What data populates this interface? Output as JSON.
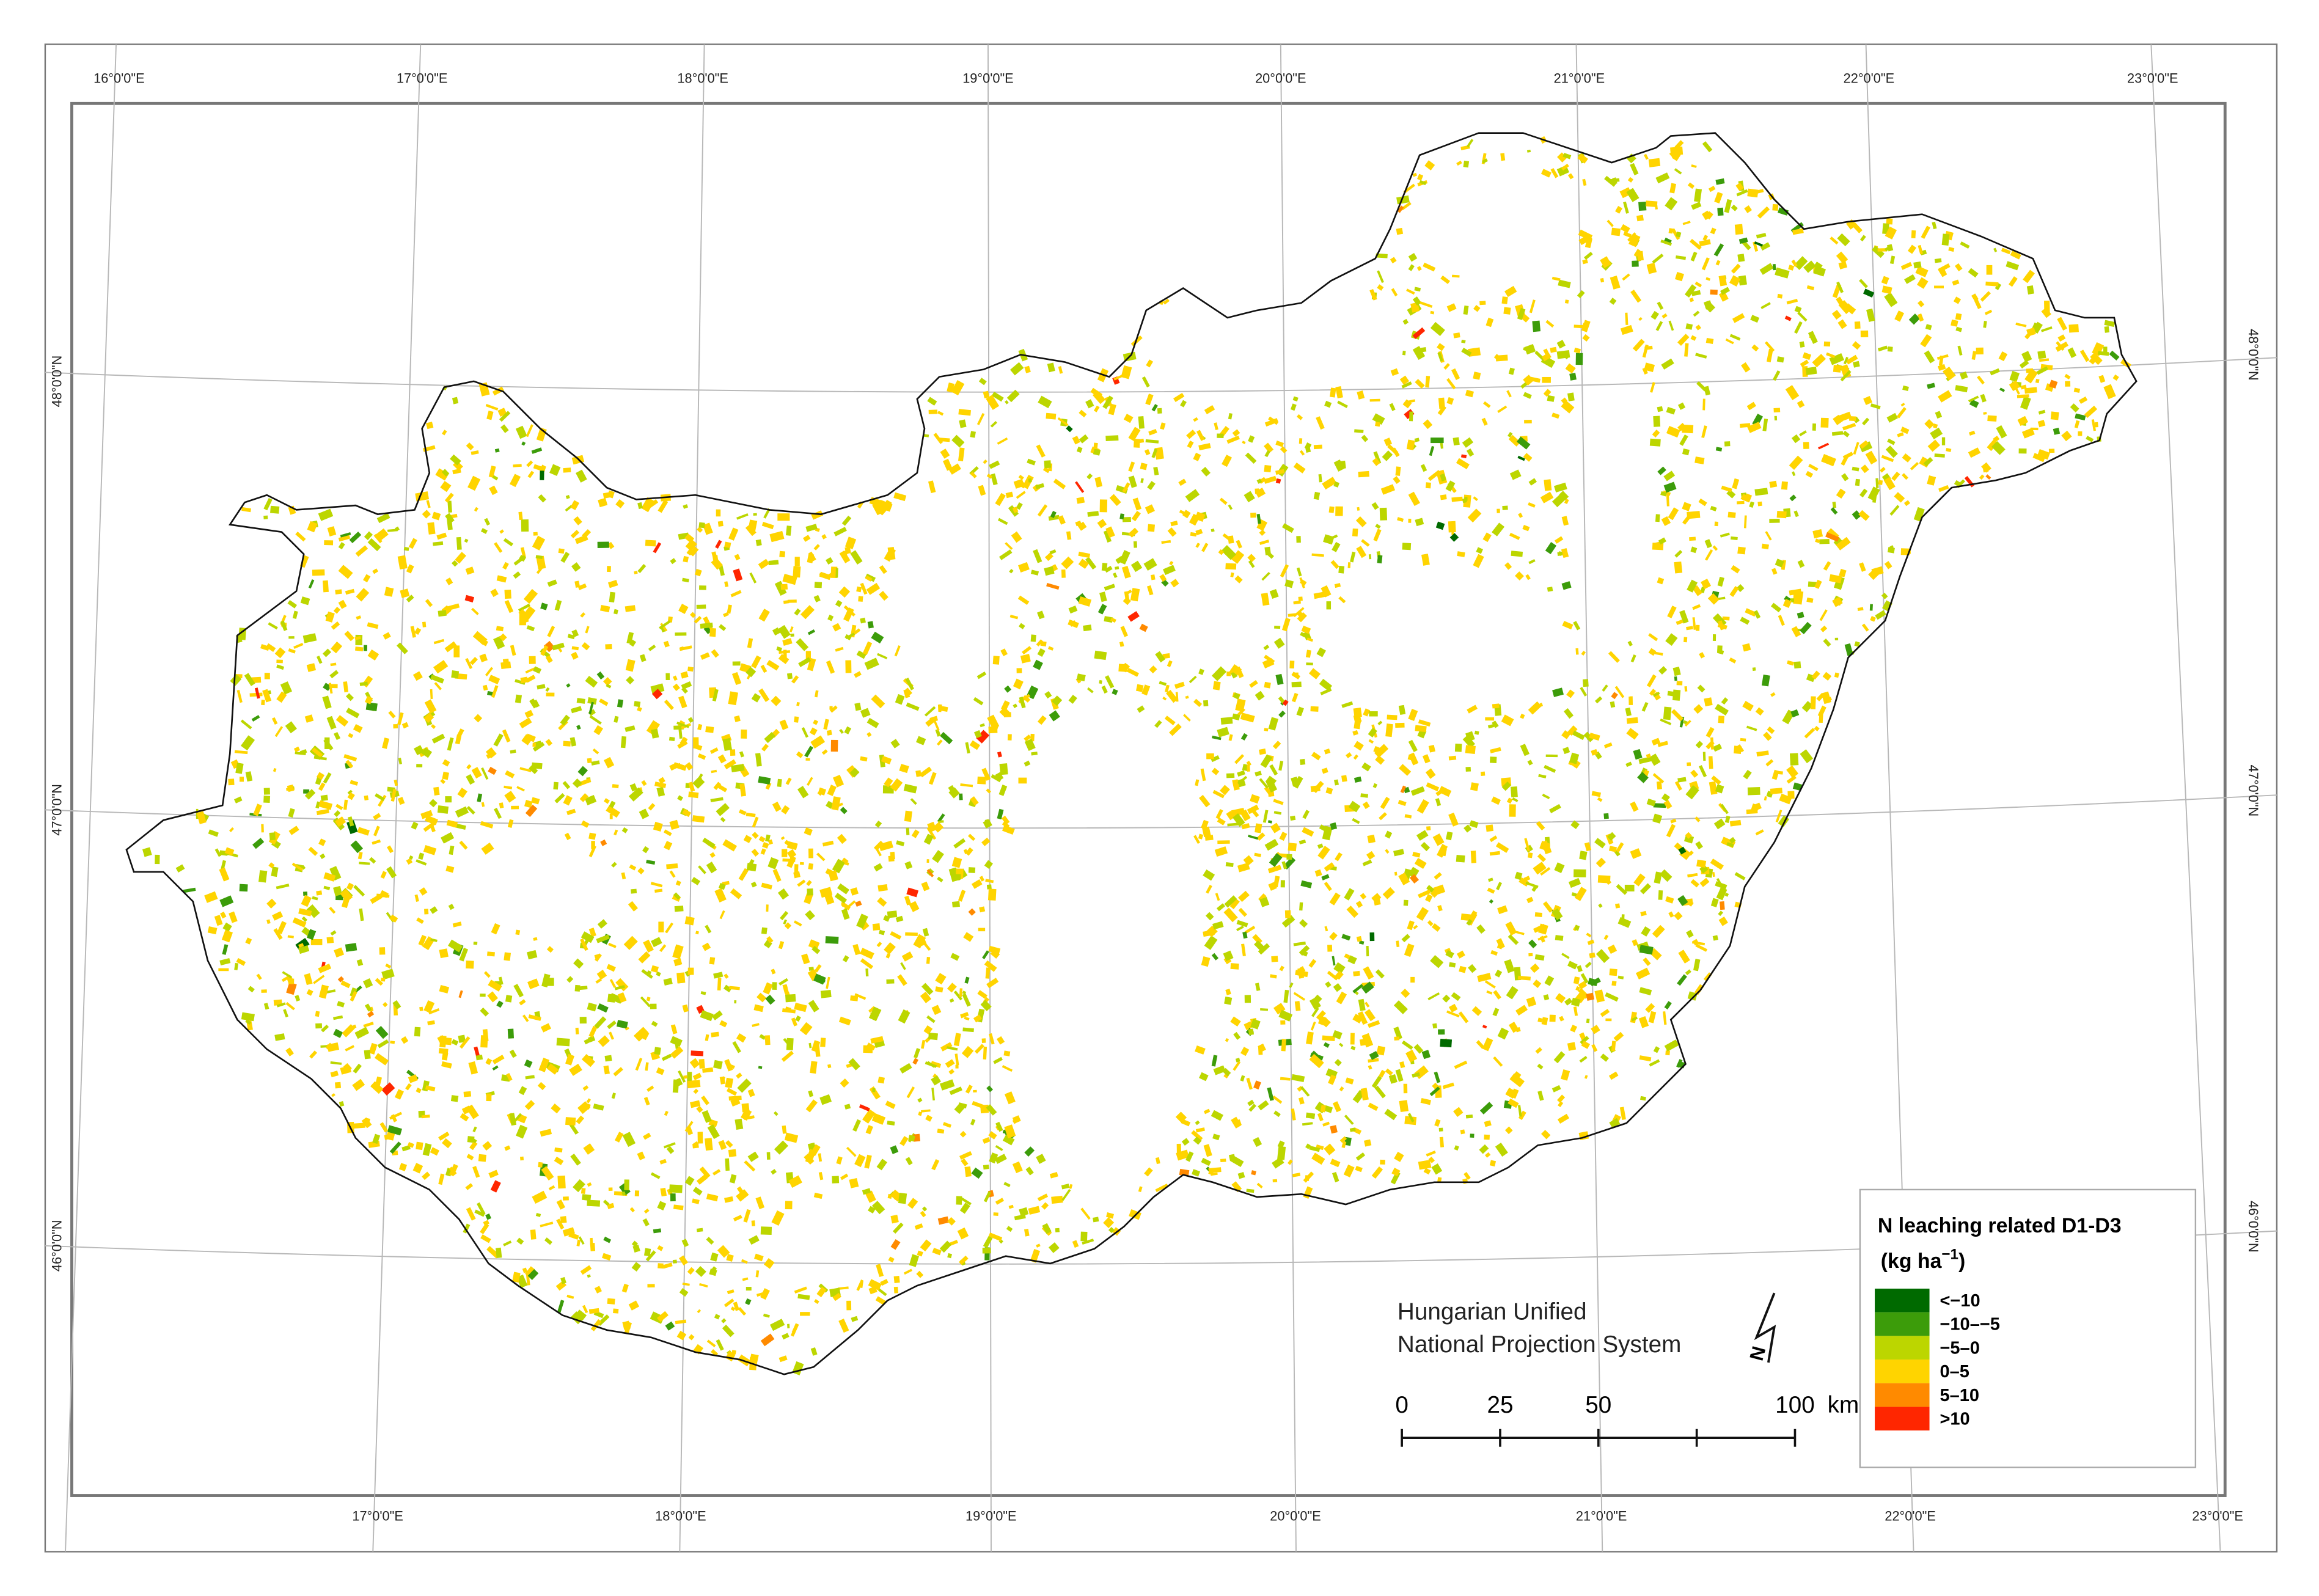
{
  "graticule": {
    "top_labels": [
      "16°0'0\"E",
      "17°0'0\"E",
      "18°0'0\"E",
      "19°0'0\"E",
      "20°0'0\"E",
      "21°0'0\"E",
      "22°0'0\"E",
      "23°0'0\"E"
    ],
    "bottom_labels": [
      "17°0'0\"E",
      "18°0'0\"E",
      "19°0'0\"E",
      "20°0'0\"E",
      "21°0'0\"E",
      "22°0'0\"E",
      "23°0'0\"E"
    ],
    "left_labels": [
      "48°0'0\"N",
      "47°0'0\"N",
      "46°0'0\"N"
    ],
    "right_labels": [
      "48°0'0\"N",
      "47°0'0\"N",
      "46°0'0\"N"
    ]
  },
  "projection": [
    "Hungarian Unified",
    "National Projection System"
  ],
  "north_arrow": "N",
  "scale_bar": {
    "ticks": [
      0,
      25,
      50,
      {
        "value": 75,
        "label": null
      },
      100
    ],
    "unit": "km"
  },
  "legend": {
    "title": "N leaching related D1-D3",
    "unit_prefix": "(kg ha",
    "unit_exponent": "−1",
    "unit_suffix": ")",
    "items": [
      {
        "label": "<−10",
        "color": "#006a00"
      },
      {
        "label": "−10–−5",
        "color": "#3c9c0a"
      },
      {
        "label": "−5–0",
        "color": "#bcd600"
      },
      {
        "label": "0–5",
        "color": "#ffd400"
      },
      {
        "label": "5–10",
        "color": "#ff8a00"
      },
      {
        "label": ">10",
        "color": "#ff2600"
      }
    ]
  }
}
